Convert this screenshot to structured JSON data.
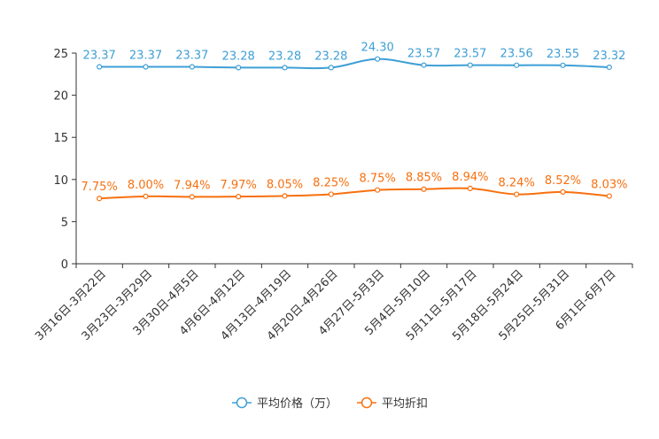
{
  "chart_data": {
    "type": "line",
    "categories": [
      "3月16日-3月22日",
      "3月23日-3月29日",
      "3月30日-4月5日",
      "4月6日-4月12日",
      "4月13日-4月19日",
      "4月20日-4月26日",
      "4月27日-5月3日",
      "5月4日-5月10日",
      "5月11日-5月17日",
      "5月18日-5月24日",
      "5月25日-5月31日",
      "6月1日-6月7日"
    ],
    "ylim": [
      0,
      25
    ],
    "yticks": [
      0,
      5,
      10,
      15,
      20,
      25
    ],
    "series": [
      {
        "name": "平均价格（万）",
        "color": "#3e9fd6",
        "values": [
          23.37,
          23.37,
          23.37,
          23.28,
          23.28,
          23.28,
          24.3,
          23.57,
          23.57,
          23.56,
          23.55,
          23.32
        ],
        "labels": [
          "23.37",
          "23.37",
          "23.37",
          "23.28",
          "23.28",
          "23.28",
          "24.30",
          "23.57",
          "23.57",
          "23.56",
          "23.55",
          "23.32"
        ]
      },
      {
        "name": "平均折扣",
        "color": "#f7700f",
        "values": [
          7.75,
          8.0,
          7.94,
          7.97,
          8.05,
          8.25,
          8.75,
          8.85,
          8.94,
          8.24,
          8.52,
          8.03
        ],
        "labels": [
          "7.75%",
          "8.00%",
          "7.94%",
          "7.97%",
          "8.05%",
          "8.25%",
          "8.75%",
          "8.85%",
          "8.94%",
          "8.24%",
          "8.52%",
          "8.03%"
        ]
      }
    ],
    "legend_position": "bottom-center"
  }
}
